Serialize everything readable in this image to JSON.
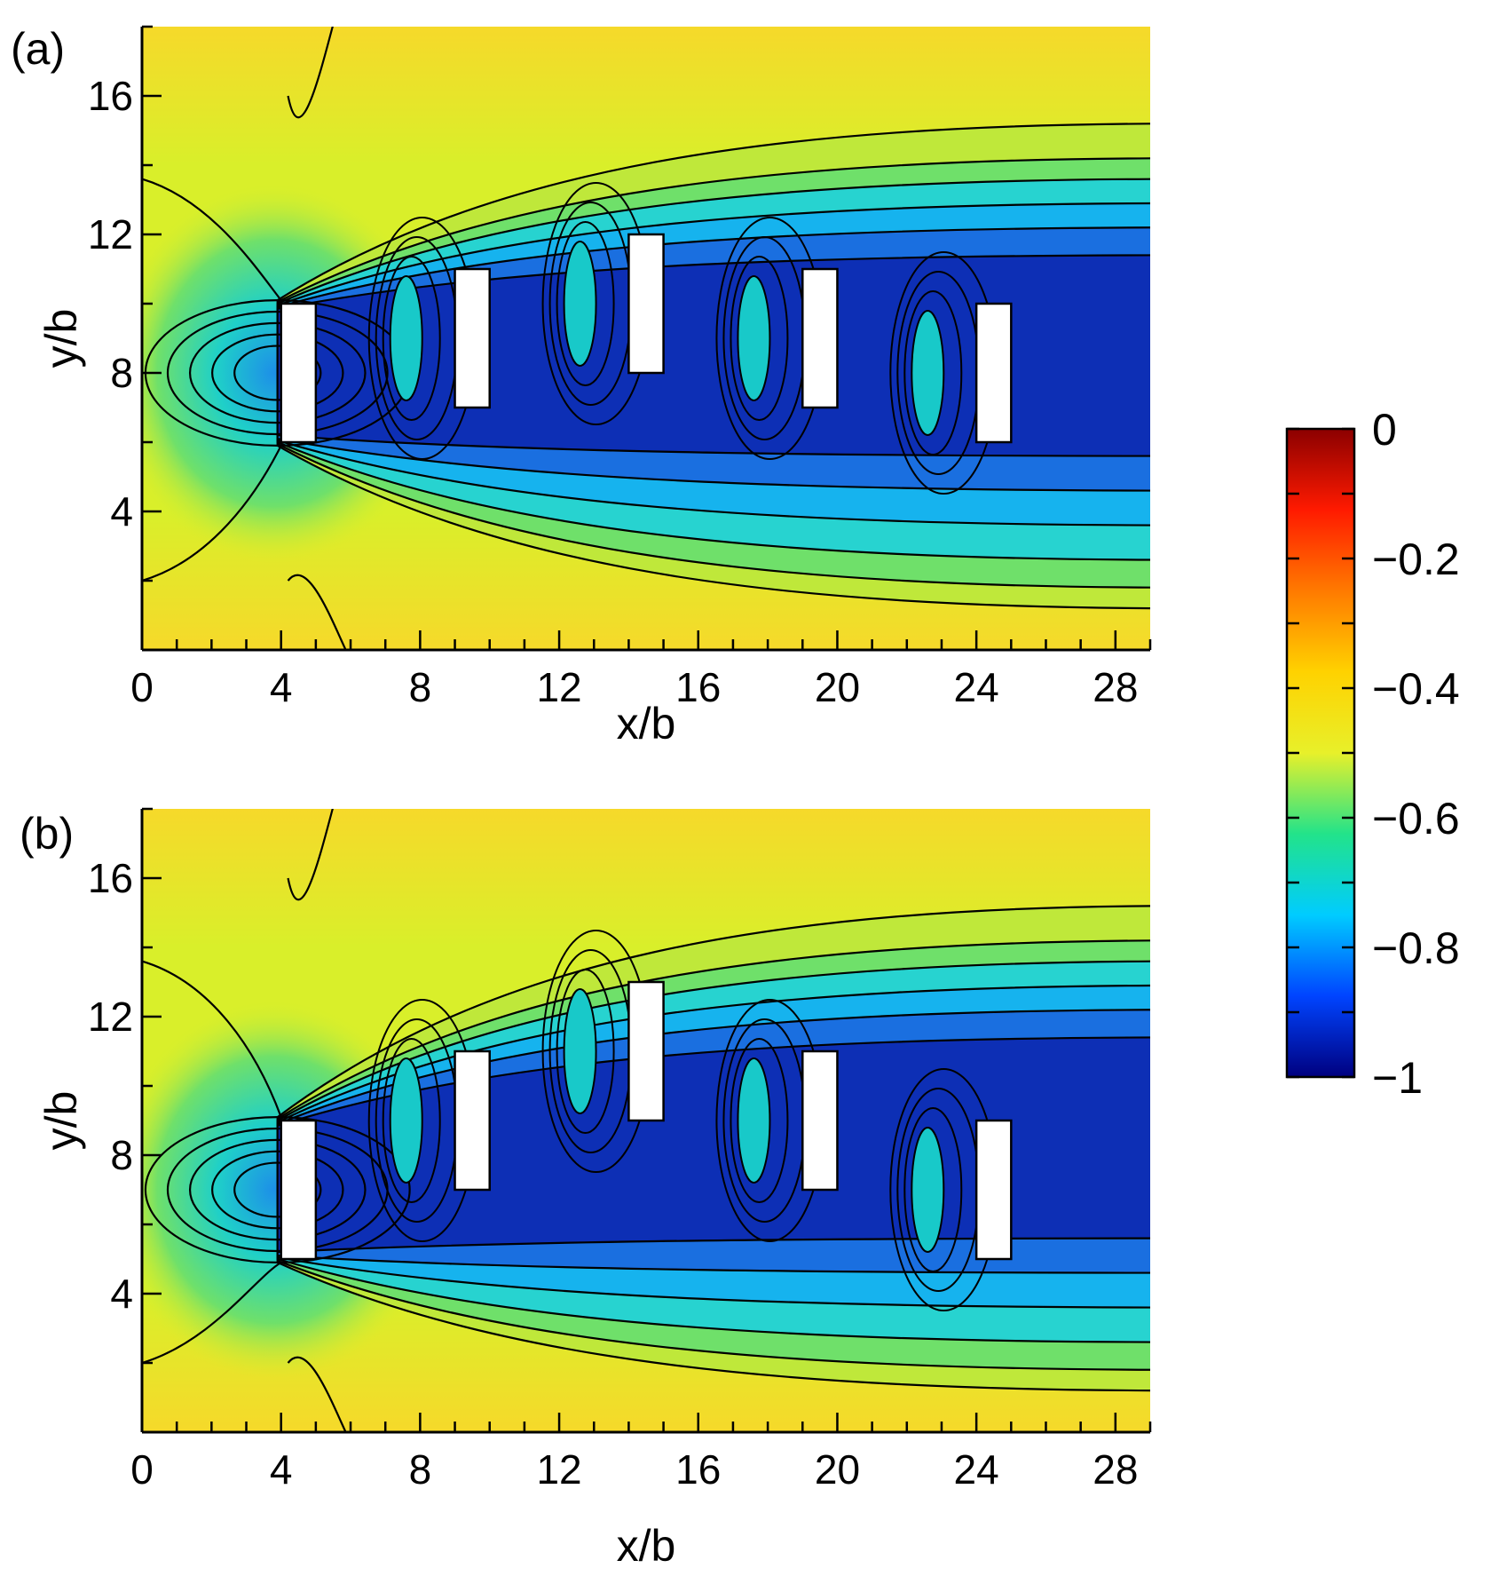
{
  "chart_data": [
    {
      "type": "heatmap",
      "panel_label": "(a)",
      "xlabel": "x/b",
      "ylabel": "y/b",
      "xlim": [
        0,
        29
      ],
      "ylim": [
        0,
        18
      ],
      "xticks": [
        0,
        4,
        8,
        12,
        16,
        20,
        24,
        28
      ],
      "yticks": [
        4,
        8,
        12,
        16
      ],
      "obstacles": [
        {
          "x0": 4,
          "x1": 5,
          "y0": 6,
          "y1": 10
        },
        {
          "x0": 9,
          "x1": 10,
          "y0": 7,
          "y1": 11
        },
        {
          "x0": 14,
          "x1": 15,
          "y0": 8,
          "y1": 12
        },
        {
          "x0": 19,
          "x1": 20,
          "y0": 7,
          "y1": 11
        },
        {
          "x0": 24,
          "x1": 25,
          "y0": 6,
          "y1": 10
        }
      ]
    },
    {
      "type": "heatmap",
      "panel_label": "(b)",
      "xlabel": "x/b",
      "ylabel": "y/b",
      "xlim": [
        0,
        29
      ],
      "ylim": [
        0,
        18
      ],
      "xticks": [
        0,
        4,
        8,
        12,
        16,
        20,
        24,
        28
      ],
      "yticks": [
        4,
        8,
        12,
        16
      ],
      "obstacles": [
        {
          "x0": 4,
          "x1": 5,
          "y0": 5,
          "y1": 9
        },
        {
          "x0": 9,
          "x1": 10,
          "y0": 7,
          "y1": 11
        },
        {
          "x0": 14,
          "x1": 15,
          "y0": 9,
          "y1": 13
        },
        {
          "x0": 19,
          "x1": 20,
          "y0": 7,
          "y1": 11
        },
        {
          "x0": 24,
          "x1": 25,
          "y0": 5,
          "y1": 9
        }
      ]
    }
  ],
  "colorbar": {
    "ticks": [
      0,
      -0.2,
      -0.4,
      -0.6,
      -0.8,
      -1
    ],
    "tick_labels": [
      "0",
      "−0.2",
      "−0.4",
      "−0.6",
      "−0.8",
      "−1"
    ],
    "range": [
      -1,
      0
    ],
    "colormap": [
      "#00007f",
      "#0044ff",
      "#00ccff",
      "#22e38a",
      "#e8f02a",
      "#ffd200",
      "#ff7a00",
      "#ff1a00",
      "#8b0000"
    ]
  },
  "colors": {
    "field_low": "#0a1fa8",
    "field_mid": "#26d4e6",
    "field_ambient": "#d9ef2a",
    "field_high": "#f6d92a",
    "obstacle": "#ffffff",
    "contour": "#000000"
  }
}
